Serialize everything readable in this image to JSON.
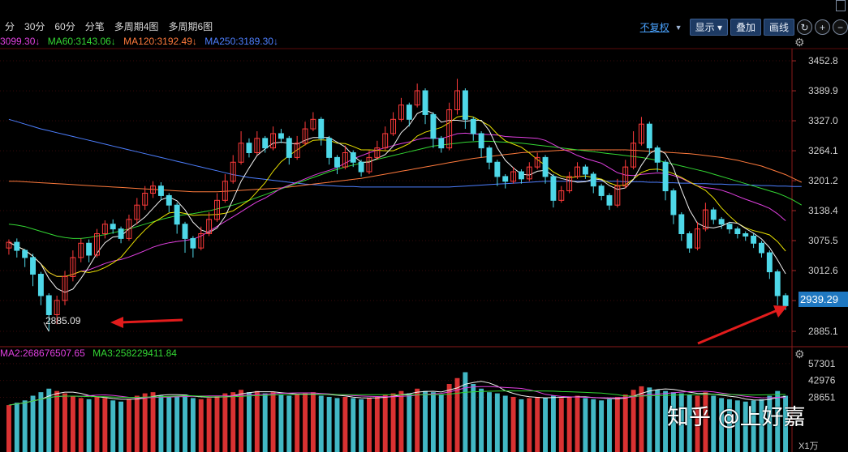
{
  "toolbar": {
    "periods": [
      "分",
      "30分",
      "60分",
      "分笔",
      "多周期4图",
      "多周期6图"
    ],
    "adjust_label": "不复权",
    "show_label": "显示",
    "overlay_label": "叠加",
    "draw_label": "画线",
    "zoom_in": "+",
    "zoom_out": "−",
    "refresh": "↻"
  },
  "price_legend": [
    {
      "text": "3099.30↓",
      "color": "#e040e0"
    },
    {
      "text": "MA60:3143.06↓",
      "color": "#33d633"
    },
    {
      "text": "MA120:3192.49↓",
      "color": "#ff7a3c"
    },
    {
      "text": "MA250:3189.30↓",
      "color": "#4d7fff"
    }
  ],
  "volume_legend": [
    {
      "text": "MA2:268676507.65",
      "color": "#e040e0"
    },
    {
      "text": "MA3:258229411.84",
      "color": "#33d633"
    }
  ],
  "colors": {
    "up": "#ff3b3b",
    "down": "#4ed8e8",
    "ma5": "#f2f2f2",
    "ma10": "#e8e000",
    "ma20": "#e040e0",
    "ma60": "#33d633",
    "ma120": "#ff7a3c",
    "ma250": "#4d7fff",
    "arrow": "#e21c1c",
    "grid": "#3a0a0a"
  },
  "annotations": {
    "low_label": "2885.09",
    "current_price": "2939.29",
    "watermark": "知乎 @上好嘉",
    "volume_unit": "X1万"
  },
  "chart_data": {
    "type": "candlestick",
    "price_axis": {
      "ticks": [
        "3452.8",
        "3389.9",
        "3327.0",
        "3264.1",
        "3201.2",
        "3138.4",
        "3075.5",
        "3012.6",
        "2949.7",
        "2885.1"
      ],
      "range": [
        2858,
        3475
      ]
    },
    "volume_axis": {
      "ticks": [
        "57301",
        "42976",
        "28651"
      ],
      "range": [
        0,
        60000
      ]
    },
    "candles": [
      [
        3060,
        3072,
        3050,
        3046,
        3078,
        22000
      ],
      [
        3072,
        3055,
        3048,
        3040,
        3080,
        24000
      ],
      [
        3055,
        3040,
        3030,
        3020,
        3058,
        26000
      ],
      [
        3040,
        3005,
        2990,
        2980,
        3048,
        30000
      ],
      [
        3005,
        2960,
        2950,
        2940,
        3010,
        33000
      ],
      [
        2960,
        2920,
        2900,
        2885,
        2965,
        36000
      ],
      [
        2920,
        2950,
        2955,
        2900,
        2960,
        34000
      ],
      [
        2950,
        3000,
        3010,
        2940,
        3012,
        32000
      ],
      [
        3000,
        3040,
        3050,
        2990,
        3055,
        30000
      ],
      [
        3040,
        3070,
        3075,
        3030,
        3080,
        28000
      ],
      [
        3070,
        3045,
        3040,
        3030,
        3078,
        27000
      ],
      [
        3045,
        3090,
        3095,
        3040,
        3100,
        29000
      ],
      [
        3090,
        3110,
        3115,
        3080,
        3118,
        28000
      ],
      [
        3110,
        3100,
        3095,
        3090,
        3120,
        26000
      ],
      [
        3100,
        3080,
        3078,
        3070,
        3105,
        25000
      ],
      [
        3080,
        3120,
        3125,
        3075,
        3130,
        27000
      ],
      [
        3120,
        3150,
        3160,
        3110,
        3165,
        30000
      ],
      [
        3150,
        3175,
        3185,
        3140,
        3190,
        32000
      ],
      [
        3175,
        3190,
        3195,
        3165,
        3200,
        33000
      ],
      [
        3190,
        3170,
        3165,
        3160,
        3198,
        30000
      ],
      [
        3170,
        3150,
        3140,
        3135,
        3175,
        29000
      ],
      [
        3150,
        3110,
        3100,
        3090,
        3155,
        30000
      ],
      [
        3110,
        3080,
        3060,
        3050,
        3115,
        31000
      ],
      [
        3080,
        3060,
        3050,
        3040,
        3085,
        28000
      ],
      [
        3060,
        3090,
        3100,
        3055,
        3105,
        27000
      ],
      [
        3090,
        3120,
        3130,
        3085,
        3135,
        28000
      ],
      [
        3120,
        3160,
        3170,
        3115,
        3175,
        30000
      ],
      [
        3160,
        3200,
        3210,
        3155,
        3215,
        32000
      ],
      [
        3200,
        3240,
        3250,
        3195,
        3255,
        33000
      ],
      [
        3240,
        3280,
        3300,
        3235,
        3305,
        35000
      ],
      [
        3280,
        3260,
        3255,
        3250,
        3290,
        33000
      ],
      [
        3260,
        3290,
        3300,
        3255,
        3305,
        34000
      ],
      [
        3290,
        3270,
        3265,
        3260,
        3295,
        32000
      ],
      [
        3270,
        3300,
        3310,
        3265,
        3315,
        33000
      ],
      [
        3300,
        3290,
        3285,
        3280,
        3310,
        31000
      ],
      [
        3290,
        3250,
        3240,
        3235,
        3295,
        30000
      ],
      [
        3250,
        3280,
        3290,
        3245,
        3295,
        31000
      ],
      [
        3280,
        3310,
        3320,
        3275,
        3325,
        32000
      ],
      [
        3310,
        3330,
        3340,
        3305,
        3345,
        33000
      ],
      [
        3330,
        3290,
        3280,
        3275,
        3335,
        30000
      ],
      [
        3290,
        3250,
        3240,
        3235,
        3295,
        29000
      ],
      [
        3250,
        3230,
        3220,
        3215,
        3255,
        28000
      ],
      [
        3230,
        3260,
        3270,
        3225,
        3275,
        29000
      ],
      [
        3260,
        3240,
        3235,
        3230,
        3265,
        28000
      ],
      [
        3240,
        3220,
        3215,
        3210,
        3245,
        27000
      ],
      [
        3220,
        3250,
        3260,
        3215,
        3265,
        28000
      ],
      [
        3250,
        3270,
        3280,
        3245,
        3285,
        29000
      ],
      [
        3270,
        3300,
        3310,
        3265,
        3315,
        31000
      ],
      [
        3300,
        3330,
        3340,
        3295,
        3345,
        32000
      ],
      [
        3330,
        3360,
        3370,
        3325,
        3375,
        34000
      ],
      [
        3360,
        3330,
        3320,
        3315,
        3365,
        32000
      ],
      [
        3360,
        3390,
        3400,
        3355,
        3405,
        36000
      ],
      [
        3390,
        3340,
        3330,
        3320,
        3395,
        34000
      ],
      [
        3340,
        3290,
        3280,
        3270,
        3345,
        33000
      ],
      [
        3290,
        3270,
        3265,
        3260,
        3295,
        31000
      ],
      [
        3270,
        3350,
        3360,
        3265,
        3365,
        40000
      ],
      [
        3350,
        3390,
        3410,
        3340,
        3415,
        45000
      ],
      [
        3390,
        3330,
        3320,
        3310,
        3395,
        50000
      ],
      [
        3330,
        3300,
        3290,
        3285,
        3335,
        40000
      ],
      [
        3300,
        3270,
        3255,
        3250,
        3305,
        36000
      ],
      [
        3270,
        3240,
        3230,
        3225,
        3275,
        33000
      ],
      [
        3240,
        3210,
        3200,
        3190,
        3245,
        32000
      ],
      [
        3210,
        3200,
        3195,
        3185,
        3215,
        30000
      ],
      [
        3200,
        3220,
        3225,
        3195,
        3230,
        29000
      ],
      [
        3220,
        3205,
        3200,
        3195,
        3225,
        27000
      ],
      [
        3205,
        3230,
        3235,
        3200,
        3240,
        28000
      ],
      [
        3230,
        3250,
        3255,
        3225,
        3260,
        29000
      ],
      [
        3250,
        3210,
        3200,
        3195,
        3255,
        28000
      ],
      [
        3210,
        3160,
        3150,
        3145,
        3215,
        30000
      ],
      [
        3160,
        3180,
        3185,
        3155,
        3190,
        28000
      ],
      [
        3180,
        3210,
        3215,
        3175,
        3220,
        29000
      ],
      [
        3210,
        3230,
        3235,
        3205,
        3240,
        30000
      ],
      [
        3230,
        3215,
        3210,
        3205,
        3235,
        28000
      ],
      [
        3215,
        3190,
        3180,
        3175,
        3220,
        27000
      ],
      [
        3190,
        3170,
        3165,
        3160,
        3195,
        26000
      ],
      [
        3170,
        3150,
        3145,
        3140,
        3175,
        27000
      ],
      [
        3150,
        3190,
        3200,
        3145,
        3205,
        29000
      ],
      [
        3190,
        3230,
        3240,
        3185,
        3245,
        31000
      ],
      [
        3230,
        3280,
        3300,
        3225,
        3305,
        35000
      ],
      [
        3280,
        3320,
        3330,
        3275,
        3335,
        38000
      ],
      [
        3320,
        3270,
        3260,
        3255,
        3325,
        37000
      ],
      [
        3270,
        3240,
        3230,
        3220,
        3275,
        35000
      ],
      [
        3240,
        3180,
        3170,
        3160,
        3245,
        34000
      ],
      [
        3180,
        3130,
        3120,
        3110,
        3185,
        33000
      ],
      [
        3130,
        3090,
        3080,
        3075,
        3135,
        32000
      ],
      [
        3090,
        3060,
        3055,
        3050,
        3095,
        31000
      ],
      [
        3060,
        3100,
        3110,
        3055,
        3115,
        30000
      ],
      [
        3100,
        3140,
        3150,
        3095,
        3155,
        33000
      ],
      [
        3140,
        3120,
        3115,
        3110,
        3145,
        30000
      ],
      [
        3120,
        3110,
        3105,
        3100,
        3125,
        28000
      ],
      [
        3110,
        3100,
        3095,
        3090,
        3115,
        27000
      ],
      [
        3100,
        3090,
        3085,
        3080,
        3105,
        26000
      ],
      [
        3090,
        3085,
        3080,
        3075,
        3095,
        25000
      ],
      [
        3085,
        3070,
        3065,
        3060,
        3090,
        26000
      ],
      [
        3070,
        3050,
        3045,
        3040,
        3075,
        27000
      ],
      [
        3050,
        3010,
        3000,
        2995,
        3055,
        30000
      ],
      [
        3010,
        2960,
        2945,
        2940,
        3015,
        34000
      ],
      [
        2960,
        2939,
        2935,
        2930,
        2965,
        30000
      ]
    ],
    "ma5_last": 3099.3,
    "ma60_last": 3143.06,
    "ma120_last": 3192.49,
    "ma250_last": 3189.3,
    "ma60_curve": [
      3110,
      3108,
      3105,
      3100,
      3095,
      3090,
      3085,
      3082,
      3080,
      3080,
      3082,
      3085,
      3088,
      3092,
      3096,
      3100,
      3105,
      3110,
      3115,
      3120,
      3124,
      3128,
      3130,
      3132,
      3135,
      3138,
      3142,
      3146,
      3150,
      3155,
      3160,
      3166,
      3172,
      3178,
      3184,
      3190,
      3196,
      3202,
      3208,
      3214,
      3220,
      3225,
      3230,
      3234,
      3238,
      3242,
      3246,
      3250,
      3254,
      3258,
      3262,
      3266,
      3270,
      3274,
      3276,
      3278,
      3280,
      3282,
      3283,
      3284,
      3284,
      3283,
      3282,
      3281,
      3280,
      3278,
      3276,
      3274,
      3272,
      3270,
      3268,
      3266,
      3264,
      3262,
      3260,
      3258,
      3256,
      3254,
      3252,
      3250,
      3247,
      3244,
      3240,
      3236,
      3232,
      3228,
      3224,
      3220,
      3215,
      3210,
      3205,
      3200,
      3195,
      3190,
      3185,
      3180,
      3175,
      3168,
      3160,
      3150
    ],
    "ma120_curve": [
      3200,
      3200,
      3199,
      3198,
      3197,
      3196,
      3195,
      3194,
      3193,
      3192,
      3191,
      3190,
      3189,
      3188,
      3187,
      3186,
      3185,
      3184,
      3183,
      3182,
      3181,
      3180,
      3179,
      3178,
      3178,
      3178,
      3178,
      3179,
      3180,
      3181,
      3182,
      3183,
      3184,
      3185,
      3186,
      3188,
      3190,
      3192,
      3194,
      3196,
      3198,
      3200,
      3202,
      3204,
      3206,
      3209,
      3212,
      3215,
      3218,
      3221,
      3224,
      3227,
      3230,
      3233,
      3236,
      3239,
      3242,
      3245,
      3248,
      3250,
      3252,
      3254,
      3256,
      3258,
      3260,
      3261,
      3262,
      3263,
      3264,
      3265,
      3266,
      3266,
      3266,
      3266,
      3266,
      3266,
      3266,
      3266,
      3265,
      3264,
      3263,
      3262,
      3261,
      3260,
      3259,
      3258,
      3256,
      3254,
      3252,
      3250,
      3247,
      3244,
      3240,
      3236,
      3232,
      3226,
      3220,
      3214,
      3206,
      3198
    ],
    "ma250_curve": [
      3330,
      3325,
      3320,
      3315,
      3310,
      3306,
      3302,
      3298,
      3294,
      3290,
      3286,
      3282,
      3278,
      3274,
      3270,
      3266,
      3262,
      3258,
      3254,
      3250,
      3246,
      3242,
      3238,
      3234,
      3230,
      3226,
      3222,
      3218,
      3214,
      3211,
      3208,
      3206,
      3204,
      3202,
      3200,
      3198,
      3196,
      3194,
      3193,
      3192,
      3191,
      3190,
      3189,
      3189,
      3188,
      3188,
      3188,
      3188,
      3188,
      3188,
      3188,
      3188,
      3188,
      3188,
      3188,
      3188,
      3189,
      3190,
      3191,
      3192,
      3193,
      3194,
      3195,
      3196,
      3197,
      3198,
      3199,
      3200,
      3200,
      3200,
      3200,
      3200,
      3200,
      3200,
      3200,
      3200,
      3200,
      3199,
      3199,
      3199,
      3198,
      3198,
      3197,
      3197,
      3196,
      3196,
      3195,
      3195,
      3194,
      3194,
      3193,
      3193,
      3192,
      3192,
      3191,
      3191,
      3190,
      3190,
      3189,
      3189
    ]
  }
}
